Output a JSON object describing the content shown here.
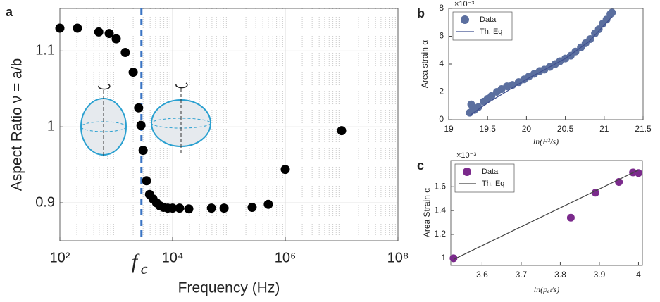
{
  "chart_data": [
    {
      "type": "scatter",
      "panel": "a",
      "xlog": true,
      "grid": true,
      "xlabel": "Frequency (Hz)",
      "ylabel": "Aspect Ratio ν = a/b",
      "xlim": [
        100,
        100000000
      ],
      "ylim": [
        0.85,
        1.156
      ],
      "xticks": [
        {
          "value": 100,
          "label": "10²"
        },
        {
          "value": 10000,
          "label": "10⁴"
        },
        {
          "value": 1000000,
          "label": "10⁶"
        },
        {
          "value": 100000000,
          "label": "10⁸"
        }
      ],
      "yticks": [
        0.9,
        1,
        1.1
      ],
      "vline": {
        "x": 2800,
        "label": "f",
        "sub": "c",
        "color": "#3a74c4"
      },
      "series": [
        {
          "color": "#000000",
          "mode": "markers",
          "x": [
            100,
            205,
            490,
            750,
            1000,
            1450,
            2000,
            2500,
            2750,
            3000,
            3450,
            3900,
            4500,
            5200,
            5950,
            6900,
            8200,
            10000,
            13300,
            19400,
            49000,
            82000,
            258000,
            500000,
            1000000,
            10000000
          ],
          "values": [
            1.13,
            1.13,
            1.125,
            1.123,
            1.116,
            1.098,
            1.072,
            1.025,
            1.002,
            0.969,
            0.929,
            0.911,
            0.905,
            0.9,
            0.896,
            0.894,
            0.893,
            0.893,
            0.893,
            0.892,
            0.893,
            0.893,
            0.894,
            0.898,
            0.944,
            0.995
          ]
        }
      ]
    },
    {
      "type": "scatter",
      "panel": "b",
      "xlog": false,
      "grid": false,
      "legend": "upper-left",
      "xlabel": "ln(E²/s)",
      "ylabel": "Area strain α",
      "exponent": "×10⁻³",
      "xlim": [
        19,
        21.5
      ],
      "ylim": [
        0,
        8
      ],
      "xticks": [
        19,
        19.5,
        20,
        20.5,
        21,
        21.5
      ],
      "yticks": [
        0,
        2,
        4,
        6,
        8
      ],
      "series": [
        {
          "name": "Data",
          "color": "#5b6f9f",
          "mode": "markers",
          "x": [
            19.27,
            19.29,
            19.31,
            19.33,
            19.38,
            19.45,
            19.5,
            19.55,
            19.62,
            19.68,
            19.75,
            19.82,
            19.9,
            19.97,
            20.03,
            20.1,
            20.17,
            20.23,
            20.3,
            20.37,
            20.43,
            20.5,
            20.57,
            20.63,
            20.7,
            20.76,
            20.82,
            20.88,
            20.93,
            20.98,
            21.03,
            21.08,
            21.1
          ],
          "values": [
            0.5,
            1.1,
            0.9,
            0.7,
            0.9,
            1.3,
            1.5,
            1.7,
            2.0,
            2.2,
            2.4,
            2.5,
            2.7,
            2.9,
            3.1,
            3.3,
            3.5,
            3.6,
            3.8,
            4.0,
            4.2,
            4.4,
            4.6,
            4.9,
            5.2,
            5.5,
            5.8,
            6.2,
            6.5,
            6.9,
            7.2,
            7.6,
            7.7
          ]
        },
        {
          "name": "Th. Eq",
          "color": "#3f4f8f",
          "mode": "line",
          "x": [
            19.27,
            19.5,
            20,
            20.5,
            20.8,
            21.1
          ],
          "values": [
            0.3,
            1.2,
            2.9,
            4.4,
            5.6,
            7.4
          ]
        }
      ]
    },
    {
      "type": "scatter",
      "panel": "c",
      "xlog": false,
      "grid": false,
      "legend": "upper-left",
      "xlabel": "ln(pₑₗ/s)",
      "ylabel": "Area Strain α",
      "exponent": "×10⁻³",
      "xlim": [
        3.52,
        4.01
      ],
      "ylim": [
        0.94,
        1.82
      ],
      "xticks": [
        3.6,
        3.7,
        3.8,
        3.9,
        4
      ],
      "yticks": [
        1,
        1.2,
        1.4,
        1.6
      ],
      "series": [
        {
          "name": "Data",
          "color": "#7b2a8c",
          "mode": "markers",
          "x": [
            3.527,
            3.827,
            3.89,
            3.95,
            3.986,
            4.0
          ],
          "values": [
            1.0,
            1.34,
            1.55,
            1.64,
            1.72,
            1.715
          ]
        },
        {
          "name": "Th. Eq",
          "color": "#444444",
          "mode": "line",
          "x": [
            3.527,
            4.0
          ],
          "values": [
            0.99,
            1.74
          ]
        }
      ]
    }
  ]
}
